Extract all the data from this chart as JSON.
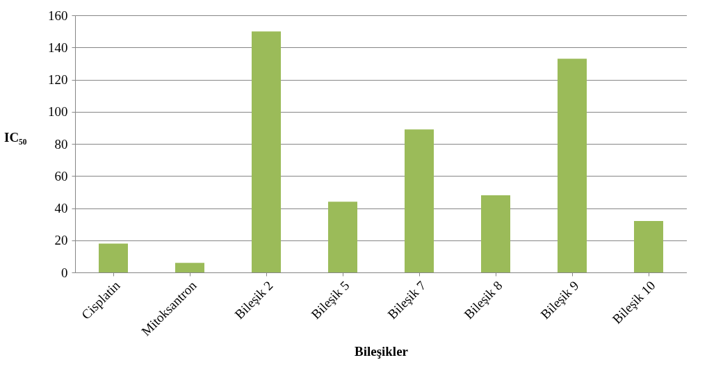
{
  "chart_data": {
    "type": "bar",
    "xlabel": "Bileşikler",
    "ylabel": "IC₅₀",
    "categories": [
      "Cisplatin",
      "Mitoksantron",
      "Bileşik 2",
      "Bileşik 5",
      "Bileşik 7",
      "Bileşik 8",
      "Bileşik 9",
      "Bileşik 10"
    ],
    "values": [
      18,
      6,
      150,
      44,
      89,
      48,
      133,
      32
    ],
    "color": "#9bbb59",
    "ylim": [
      0,
      160
    ],
    "yticks": [
      0,
      20,
      40,
      60,
      80,
      100,
      120,
      140,
      160
    ],
    "grid": "y"
  }
}
